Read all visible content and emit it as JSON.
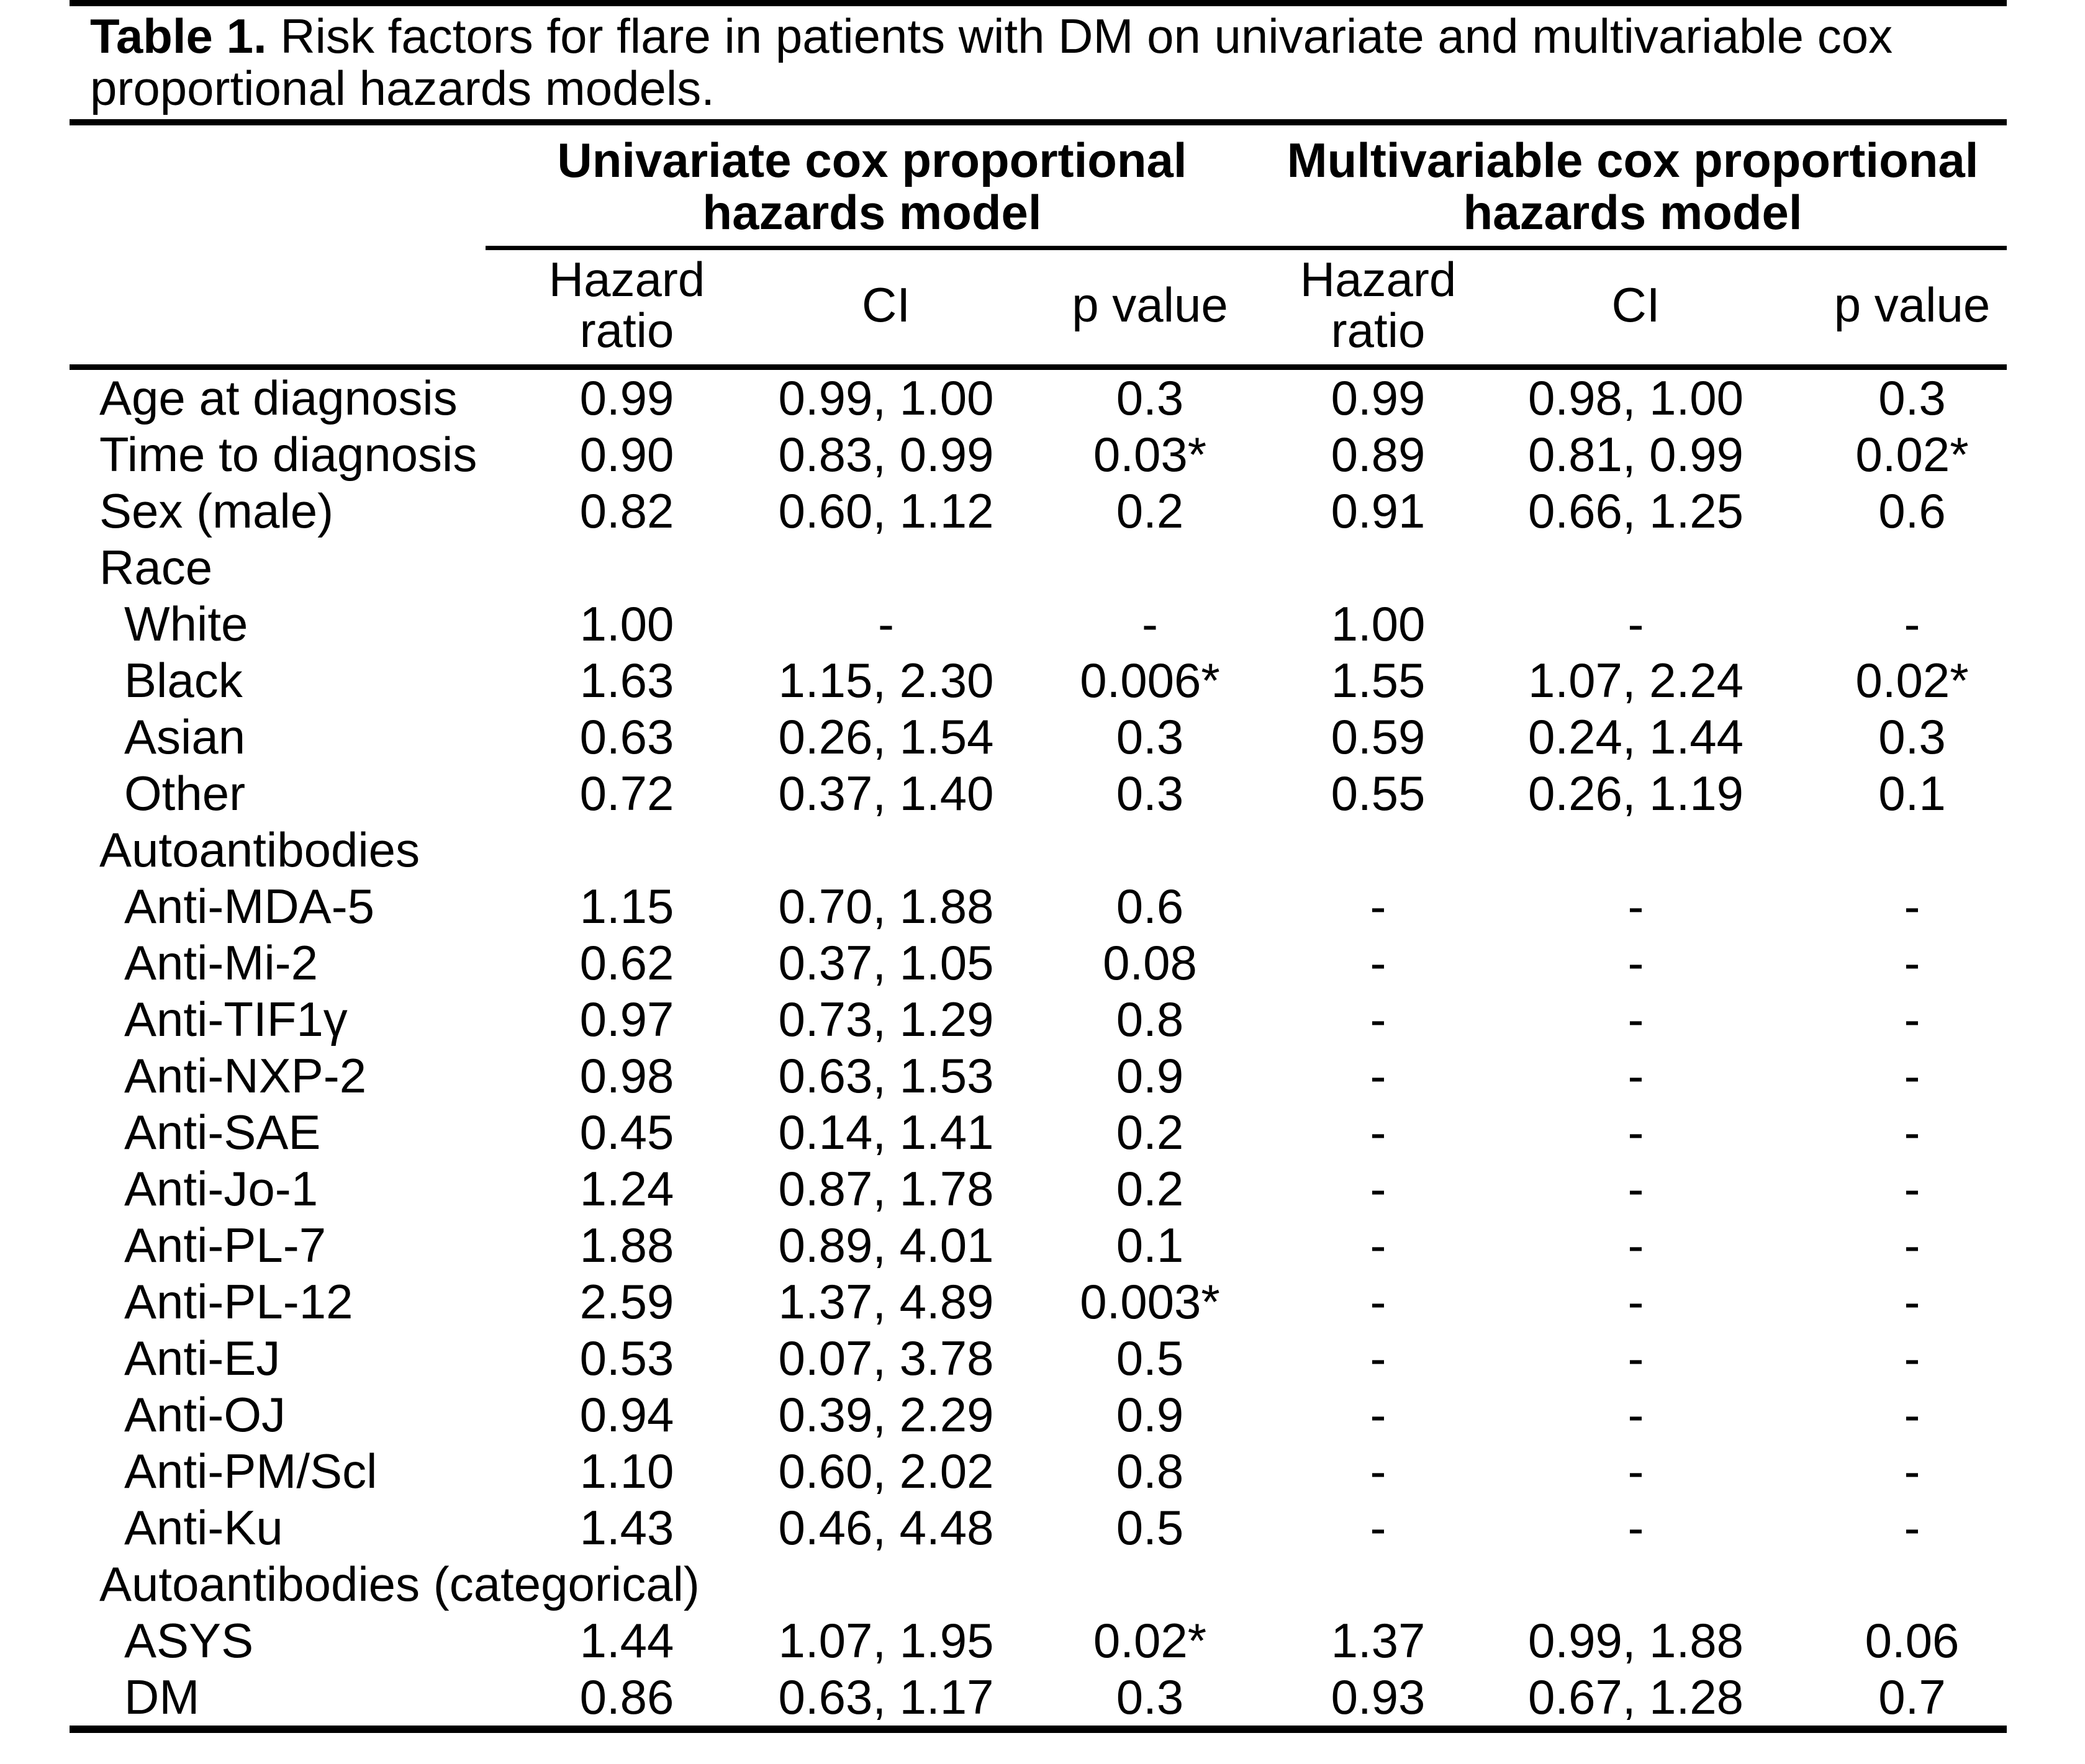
{
  "page": {
    "background_color": "#ffffff",
    "text_color": "#000000",
    "rule_color": "#000000"
  },
  "table": {
    "title_bold": "Table 1.",
    "title_rest": " Risk factors for flare in patients with DM on univariate and multivariable cox proportional hazards models.",
    "group_headers": [
      "Univariate cox proportional hazards model",
      "Multivariable cox proportional hazards model"
    ],
    "sub_headers": [
      "Hazard ratio",
      "CI",
      "p value",
      "Hazard ratio",
      "CI",
      "p value"
    ],
    "rows": [
      {
        "label": "Age at diagnosis",
        "indent": 0,
        "cells": [
          "0.99",
          "0.99, 1.00",
          "0.3",
          "0.99",
          "0.98, 1.00",
          "0.3"
        ]
      },
      {
        "label": "Time to diagnosis",
        "indent": 0,
        "cells": [
          "0.90",
          "0.83, 0.99",
          "0.03*",
          "0.89",
          "0.81, 0.99",
          "0.02*"
        ]
      },
      {
        "label": "Sex (male)",
        "indent": 0,
        "cells": [
          "0.82",
          "0.60, 1.12",
          "0.2",
          "0.91",
          "0.66, 1.25",
          "0.6"
        ]
      },
      {
        "label": "Race",
        "indent": 0,
        "cells": [
          "",
          "",
          "",
          "",
          "",
          ""
        ]
      },
      {
        "label": "White",
        "indent": 1,
        "cells": [
          "1.00",
          "-",
          "-",
          "1.00",
          "-",
          "-"
        ]
      },
      {
        "label": "Black",
        "indent": 1,
        "cells": [
          "1.63",
          "1.15, 2.30",
          "0.006*",
          "1.55",
          "1.07, 2.24",
          "0.02*"
        ]
      },
      {
        "label": "Asian",
        "indent": 1,
        "cells": [
          "0.63",
          "0.26, 1.54",
          "0.3",
          "0.59",
          "0.24, 1.44",
          "0.3"
        ]
      },
      {
        "label": "Other",
        "indent": 1,
        "cells": [
          "0.72",
          "0.37, 1.40",
          "0.3",
          "0.55",
          "0.26, 1.19",
          "0.1"
        ]
      },
      {
        "label": "Autoantibodies",
        "indent": 0,
        "cells": [
          "",
          "",
          "",
          "",
          "",
          ""
        ]
      },
      {
        "label": "Anti-MDA-5",
        "indent": 1,
        "cells": [
          "1.15",
          "0.70, 1.88",
          "0.6",
          "-",
          "-",
          "-"
        ]
      },
      {
        "label": "Anti-Mi-2",
        "indent": 1,
        "cells": [
          "0.62",
          "0.37, 1.05",
          "0.08",
          "-",
          "-",
          "-"
        ]
      },
      {
        "label": "Anti-TIF1γ",
        "indent": 1,
        "cells": [
          "0.97",
          "0.73, 1.29",
          "0.8",
          "-",
          "-",
          "-"
        ]
      },
      {
        "label": "Anti-NXP-2",
        "indent": 1,
        "cells": [
          "0.98",
          "0.63, 1.53",
          "0.9",
          "-",
          "-",
          "-"
        ]
      },
      {
        "label": "Anti-SAE",
        "indent": 1,
        "cells": [
          "0.45",
          "0.14, 1.41",
          "0.2",
          "-",
          "-",
          "-"
        ]
      },
      {
        "label": "Anti-Jo-1",
        "indent": 1,
        "cells": [
          "1.24",
          "0.87, 1.78",
          "0.2",
          "-",
          "-",
          "-"
        ]
      },
      {
        "label": "Anti-PL-7",
        "indent": 1,
        "cells": [
          "1.88",
          "0.89, 4.01",
          "0.1",
          "-",
          "-",
          "-"
        ]
      },
      {
        "label": "Anti-PL-12",
        "indent": 1,
        "cells": [
          "2.59",
          "1.37, 4.89",
          "0.003*",
          "-",
          "-",
          "-"
        ]
      },
      {
        "label": "Anti-EJ",
        "indent": 1,
        "cells": [
          "0.53",
          "0.07, 3.78",
          "0.5",
          "-",
          "-",
          "-"
        ]
      },
      {
        "label": "Anti-OJ",
        "indent": 1,
        "cells": [
          "0.94",
          "0.39, 2.29",
          "0.9",
          "-",
          "-",
          "-"
        ]
      },
      {
        "label": "Anti-PM/Scl",
        "indent": 1,
        "cells": [
          "1.10",
          "0.60, 2.02",
          "0.8",
          "-",
          "-",
          "-"
        ]
      },
      {
        "label": "Anti-Ku",
        "indent": 1,
        "cells": [
          "1.43",
          "0.46, 4.48",
          "0.5",
          "-",
          "-",
          "-"
        ]
      },
      {
        "label": "Autoantibodies (categorical)",
        "indent": 0,
        "cells": [
          "",
          "",
          "",
          "",
          "",
          ""
        ]
      },
      {
        "label": "ASYS",
        "indent": 1,
        "cells": [
          "1.44",
          "1.07, 1.95",
          "0.02*",
          "1.37",
          "0.99, 1.88",
          "0.06"
        ]
      },
      {
        "label": "DM",
        "indent": 1,
        "cells": [
          "0.86",
          "0.63, 1.17",
          "0.3",
          "0.93",
          "0.67, 1.28",
          "0.7"
        ]
      }
    ]
  }
}
